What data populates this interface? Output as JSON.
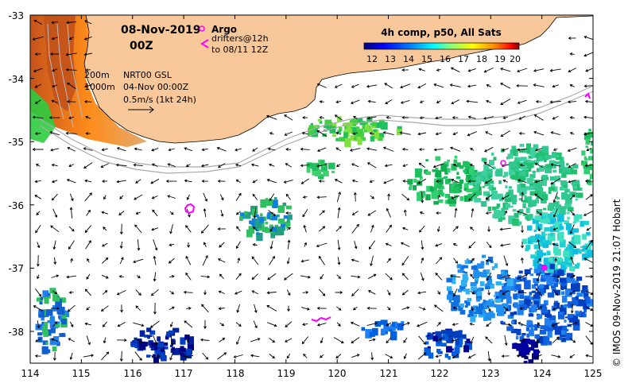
{
  "map": {
    "lon_range": [
      114,
      125
    ],
    "lat_range": [
      -38.5,
      -33
    ],
    "lon_ticks": [
      "114",
      "115",
      "116",
      "117",
      "118",
      "119",
      "120",
      "121",
      "122",
      "123",
      "124",
      "125"
    ],
    "lat_ticks": [
      "-33",
      "-34",
      "-35",
      "-36",
      "-37",
      "-38"
    ],
    "land_color": "#f9c89a"
  },
  "header": {
    "date": "08-Nov-2019",
    "time": "00Z"
  },
  "legend": {
    "argo_label": "Argo",
    "drifters_label": "drifters@12h",
    "drifters_until": "to 08/11 12Z",
    "argo_color": "#ff00ff",
    "drifter_color": "#ff00ff"
  },
  "info": {
    "contour_200": "200m",
    "contour_1000": "1000m",
    "source": "NRT00 GSL",
    "source_time": "04-Nov 00:00Z",
    "velocity_scale": "0.5m/s (1kt 24h)"
  },
  "colorbar": {
    "title": "4h comp, p50, All Sats",
    "ticks": [
      "12",
      "13",
      "14",
      "15",
      "16",
      "17",
      "18",
      "19",
      "20"
    ],
    "colors": [
      "#00007f",
      "#0000ff",
      "#007fff",
      "#00ffff",
      "#7fff7f",
      "#ffff00",
      "#ff7f00",
      "#ff0000",
      "#7f0000"
    ]
  },
  "credit": "© IMOS 09-Nov-2019 21:07 Hobart"
}
